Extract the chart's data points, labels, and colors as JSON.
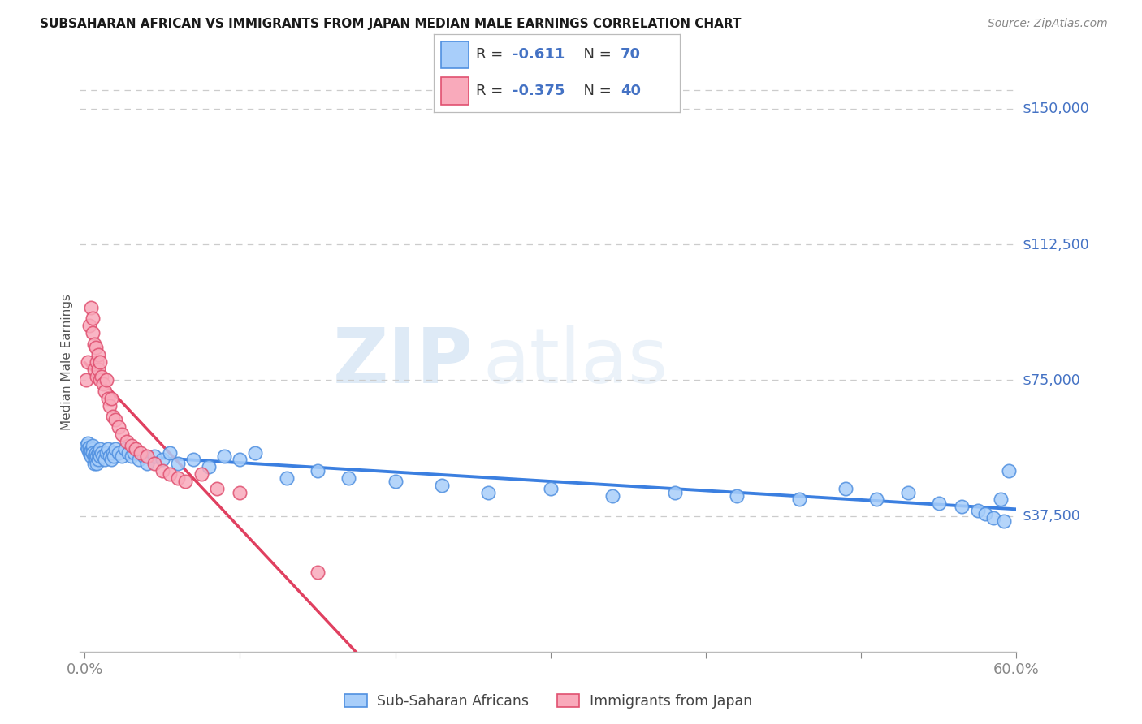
{
  "title": "SUBSAHARAN AFRICAN VS IMMIGRANTS FROM JAPAN MEDIAN MALE EARNINGS CORRELATION CHART",
  "source": "Source: ZipAtlas.com",
  "ylabel": "Median Male Earnings",
  "yticks": [
    0,
    37500,
    75000,
    112500,
    150000
  ],
  "ytick_labels": [
    "",
    "$37,500",
    "$75,000",
    "$112,500",
    "$150,000"
  ],
  "ymax": 160000,
  "xmax": 0.6,
  "color_blue": "#A8CEFA",
  "color_pink": "#F9AABB",
  "edge_blue": "#5090E0",
  "edge_pink": "#E05070",
  "line_blue": "#3B7FE0",
  "line_pink": "#E04060",
  "text_blue": "#4472C4",
  "watermark_zip_color": "#C8DCF0",
  "watermark_atlas_color": "#C8DCF0",
  "legend_label1": "R =  -0.611   N = 70",
  "legend_label2": "R =  -0.375   N = 40",
  "blue_scatter_x": [
    0.001,
    0.002,
    0.002,
    0.003,
    0.003,
    0.004,
    0.004,
    0.005,
    0.005,
    0.005,
    0.006,
    0.006,
    0.007,
    0.007,
    0.008,
    0.008,
    0.009,
    0.009,
    0.01,
    0.01,
    0.011,
    0.012,
    0.013,
    0.014,
    0.015,
    0.016,
    0.017,
    0.018,
    0.019,
    0.02,
    0.022,
    0.024,
    0.026,
    0.028,
    0.03,
    0.032,
    0.035,
    0.038,
    0.04,
    0.045,
    0.05,
    0.055,
    0.06,
    0.07,
    0.08,
    0.09,
    0.1,
    0.11,
    0.13,
    0.15,
    0.17,
    0.2,
    0.23,
    0.26,
    0.3,
    0.34,
    0.38,
    0.42,
    0.46,
    0.49,
    0.51,
    0.53,
    0.55,
    0.565,
    0.575,
    0.58,
    0.585,
    0.59,
    0.592,
    0.595
  ],
  "blue_scatter_y": [
    57000,
    57500,
    56000,
    56500,
    55000,
    54000,
    55500,
    56000,
    57000,
    55000,
    54000,
    52000,
    53000,
    55000,
    54000,
    52000,
    53000,
    55000,
    54000,
    56000,
    55000,
    54000,
    53000,
    55000,
    56000,
    54000,
    53000,
    55000,
    54000,
    56000,
    55000,
    54000,
    56000,
    55000,
    54000,
    55000,
    53000,
    54000,
    52000,
    54000,
    53000,
    55000,
    52000,
    53000,
    51000,
    54000,
    53000,
    55000,
    48000,
    50000,
    48000,
    47000,
    46000,
    44000,
    45000,
    43000,
    44000,
    43000,
    42000,
    45000,
    42000,
    44000,
    41000,
    40000,
    39000,
    38000,
    37000,
    42000,
    36000,
    50000
  ],
  "pink_scatter_x": [
    0.001,
    0.002,
    0.003,
    0.004,
    0.005,
    0.005,
    0.006,
    0.006,
    0.007,
    0.008,
    0.008,
    0.009,
    0.009,
    0.01,
    0.01,
    0.011,
    0.012,
    0.013,
    0.014,
    0.015,
    0.016,
    0.017,
    0.018,
    0.02,
    0.022,
    0.024,
    0.027,
    0.03,
    0.033,
    0.036,
    0.04,
    0.045,
    0.05,
    0.055,
    0.06,
    0.065,
    0.075,
    0.085,
    0.1,
    0.15
  ],
  "pink_scatter_y": [
    75000,
    80000,
    90000,
    95000,
    88000,
    92000,
    85000,
    78000,
    84000,
    80000,
    76000,
    78000,
    82000,
    75000,
    80000,
    76000,
    74000,
    72000,
    75000,
    70000,
    68000,
    70000,
    65000,
    64000,
    62000,
    60000,
    58000,
    57000,
    56000,
    55000,
    54000,
    52000,
    50000,
    49000,
    48000,
    47000,
    49000,
    45000,
    44000,
    22000
  ]
}
